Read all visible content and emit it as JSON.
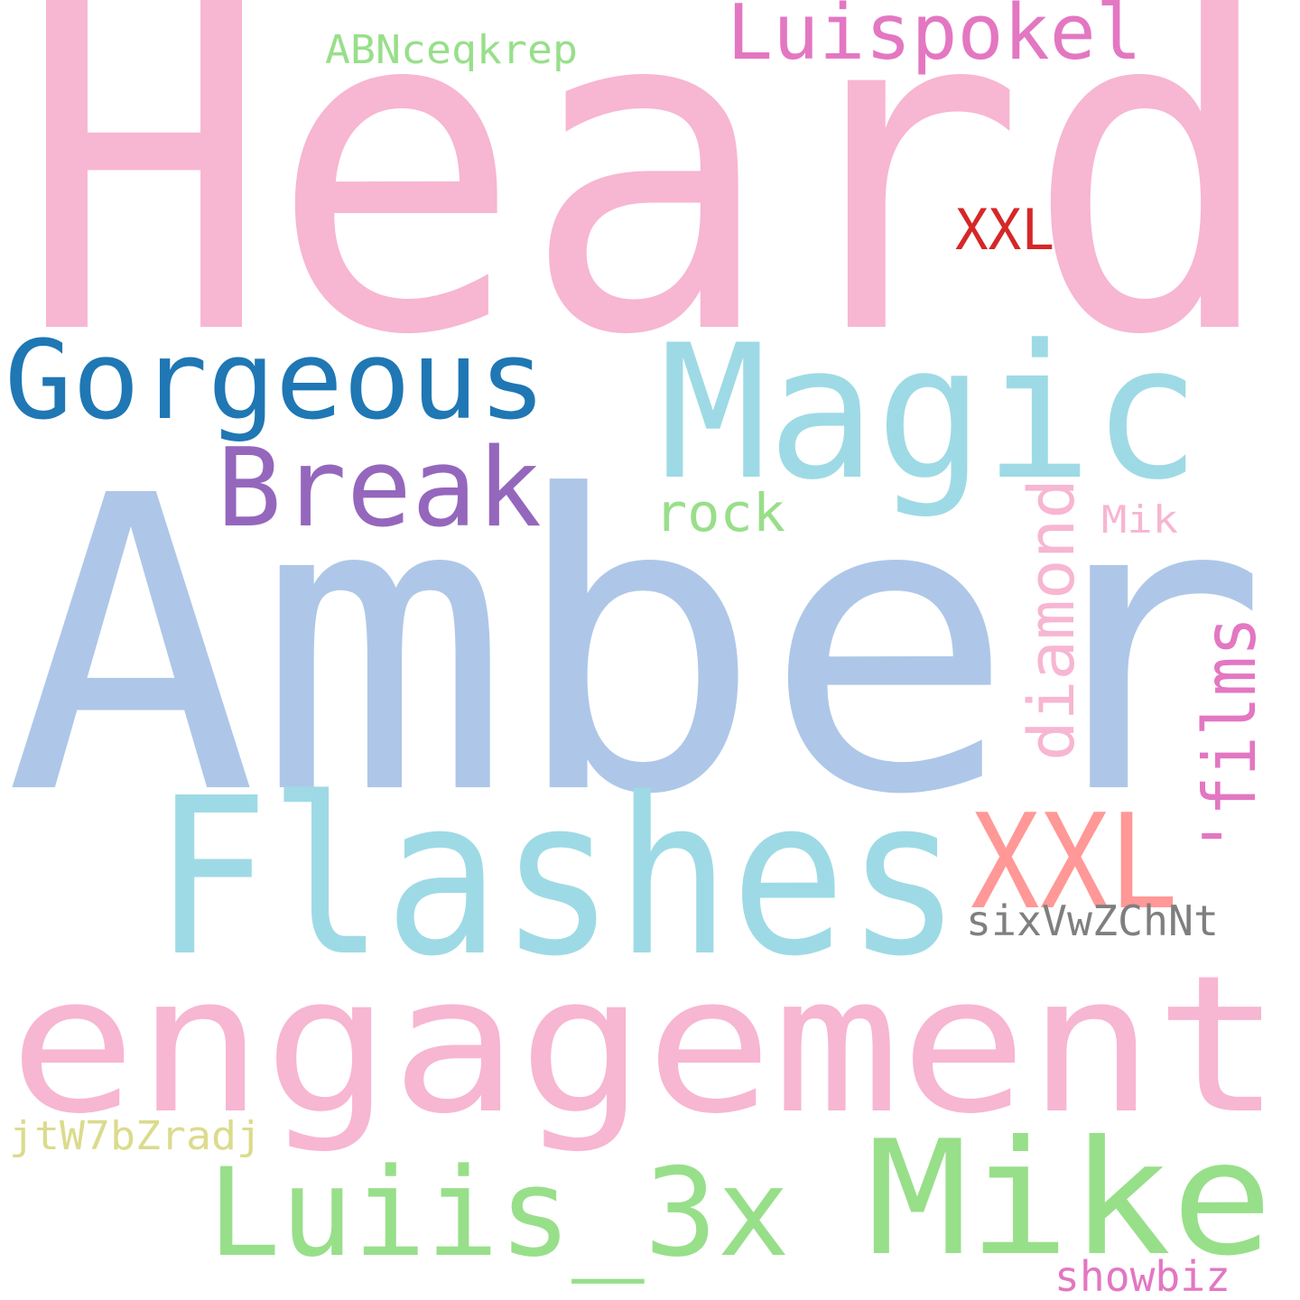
{
  "words": [
    {
      "id": "heard",
      "text": "Heard",
      "color": "#f7b6d2"
    },
    {
      "id": "amber",
      "text": "Amber",
      "color": "#aec7e8"
    },
    {
      "id": "engagement",
      "text": "engagement",
      "color": "#f7b6d2"
    },
    {
      "id": "flashes",
      "text": "Flashes",
      "color": "#9edae5"
    },
    {
      "id": "magic",
      "text": "Magic",
      "color": "#9edae5"
    },
    {
      "id": "gorgeous",
      "text": "Gorgeous",
      "color": "#1f77b4"
    },
    {
      "id": "mike",
      "text": "Mike",
      "color": "#98df8a"
    },
    {
      "id": "luiis-3x",
      "text": "Luiis_3x",
      "color": "#98df8a"
    },
    {
      "id": "break",
      "text": "Break",
      "color": "#9467bd"
    },
    {
      "id": "xxl-large",
      "text": "XXL",
      "color": "#ff9896"
    },
    {
      "id": "luispokel",
      "text": "Luispokel",
      "color": "#e377c2"
    },
    {
      "id": "diamond",
      "text": "diamond",
      "color": "#f7b6d2"
    },
    {
      "id": "films",
      "text": "'films",
      "color": "#e377c2"
    },
    {
      "id": "rock",
      "text": "rock",
      "color": "#98df8a"
    },
    {
      "id": "xxl-small",
      "text": "XXL",
      "color": "#d62728"
    },
    {
      "id": "sixvwzchnt",
      "text": "sixVwZChNt",
      "color": "#7f7f7f"
    },
    {
      "id": "abnceqkrep",
      "text": "ABNceqkrep",
      "color": "#98df8a"
    },
    {
      "id": "jtw7bzradj",
      "text": "jtW7bZradj",
      "color": "#dbdb8d"
    },
    {
      "id": "mik",
      "text": "Mik",
      "color": "#f7b6d2"
    },
    {
      "id": "showbiz",
      "text": "showbiz",
      "color": "#e377c2"
    }
  ]
}
